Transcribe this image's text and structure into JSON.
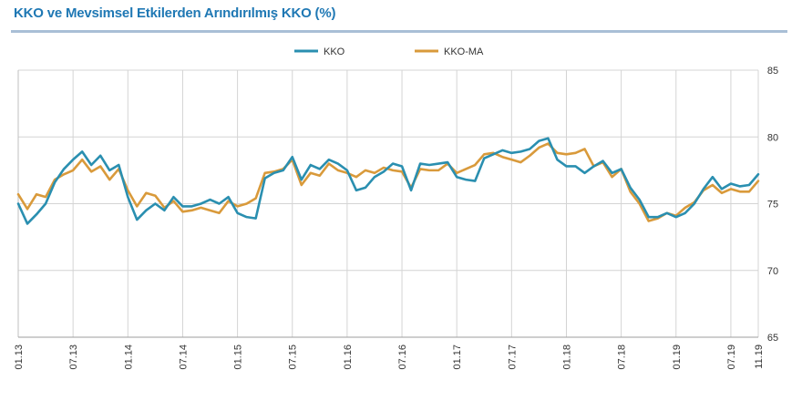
{
  "chart_data": {
    "type": "line",
    "title": "KKO ve Mevsimsel Etkilerden Arındırılmış KKO (%)",
    "xlabel": "",
    "ylabel": "",
    "ylim": [
      65,
      85
    ],
    "yticks": [
      65,
      70,
      75,
      80,
      85
    ],
    "grid": true,
    "legend_position": "top-center",
    "x_tick_labels": [
      "01.13",
      "07.13",
      "01.14",
      "07.14",
      "01.15",
      "07.15",
      "01.16",
      "07.16",
      "01.17",
      "07.17",
      "01.18",
      "07.18",
      "01.19",
      "07.19",
      "11.19"
    ],
    "series": [
      {
        "name": "KKO",
        "color": "#2a8fb0",
        "values": [
          75.0,
          73.5,
          74.2,
          75.0,
          76.6,
          77.6,
          78.3,
          78.9,
          77.9,
          78.6,
          77.5,
          77.9,
          75.5,
          73.8,
          74.5,
          75.0,
          74.5,
          75.5,
          74.8,
          74.8,
          75.0,
          75.3,
          75.0,
          75.5,
          74.3,
          74.0,
          73.9,
          76.9,
          77.3,
          77.5,
          78.5,
          76.8,
          77.9,
          77.6,
          78.3,
          78.0,
          77.5,
          76.0,
          76.2,
          77.0,
          77.4,
          78.0,
          77.8,
          76.0,
          78.0,
          77.9,
          78.0,
          78.1,
          77.0,
          76.8,
          76.7,
          78.4,
          78.7,
          79.0,
          78.8,
          78.9,
          79.1,
          79.7,
          79.9,
          78.3,
          77.8,
          77.8,
          77.3,
          77.8,
          78.2,
          77.3,
          77.6,
          76.2,
          75.3,
          74.0,
          74.0,
          74.3,
          74.0,
          74.3,
          75.0,
          76.1,
          77.0,
          76.1,
          76.5,
          76.3,
          76.4,
          77.2
        ]
      },
      {
        "name": "KKO-MA",
        "color": "#d99a3b",
        "values": [
          75.7,
          74.6,
          75.7,
          75.5,
          76.8,
          77.2,
          77.5,
          78.3,
          77.4,
          77.8,
          76.8,
          77.6,
          76.0,
          74.8,
          75.8,
          75.6,
          74.7,
          75.2,
          74.4,
          74.5,
          74.7,
          74.5,
          74.3,
          75.2,
          74.8,
          75.0,
          75.4,
          77.3,
          77.4,
          77.6,
          78.3,
          76.4,
          77.3,
          77.1,
          78.0,
          77.5,
          77.3,
          77.0,
          77.5,
          77.3,
          77.7,
          77.5,
          77.4,
          76.2,
          77.6,
          77.5,
          77.5,
          78.0,
          77.3,
          77.6,
          77.9,
          78.7,
          78.8,
          78.5,
          78.3,
          78.1,
          78.6,
          79.2,
          79.5,
          78.8,
          78.7,
          78.8,
          79.1,
          77.8,
          78.1,
          77.0,
          77.6,
          75.9,
          75.0,
          73.7,
          73.9,
          74.3,
          74.1,
          74.7,
          75.1,
          76.0,
          76.4,
          75.8,
          76.1,
          75.9,
          75.9,
          76.7
        ]
      }
    ]
  }
}
